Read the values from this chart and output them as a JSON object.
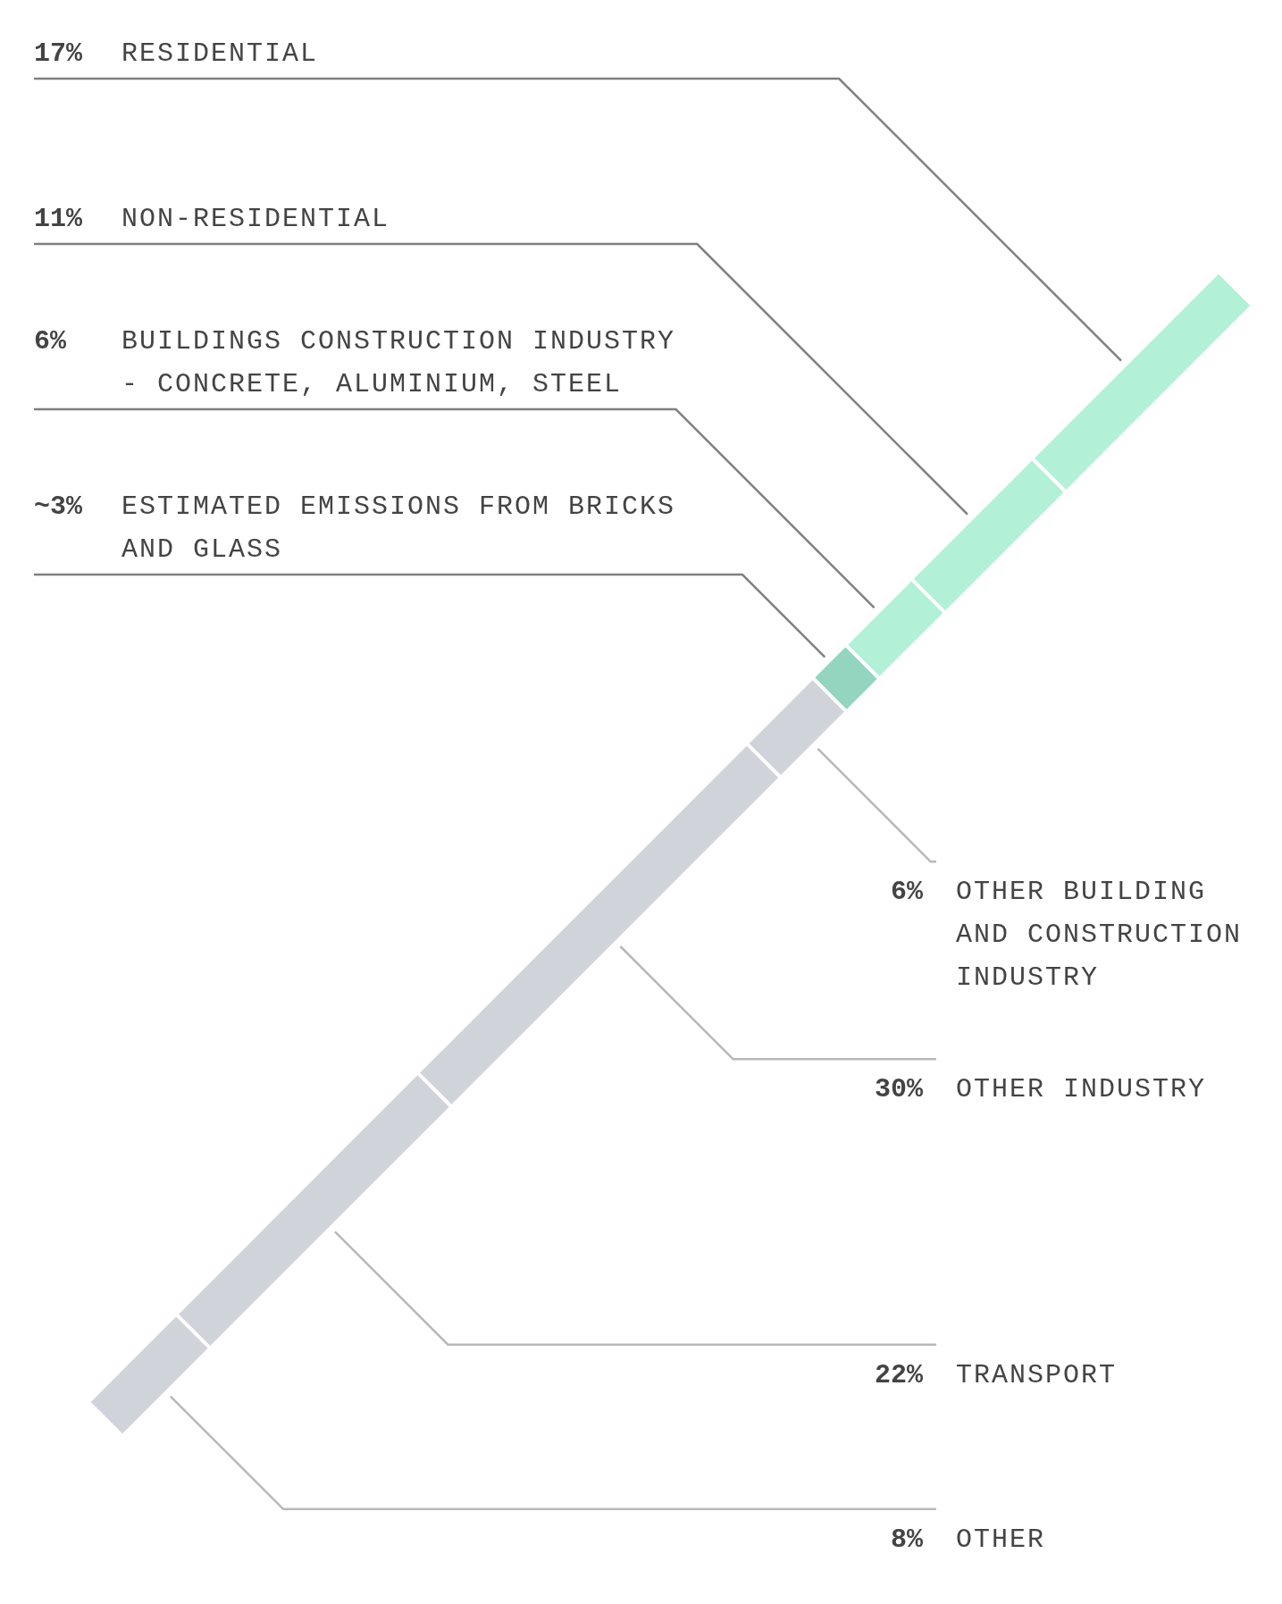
{
  "chart_data": {
    "type": "other",
    "categories": [
      "OTHER",
      "TRANSPORT",
      "OTHER INDUSTRY",
      "OTHER BUILDING AND CONSTRUCTION INDUSTRY",
      "ESTIMATED EMISSIONS FROM BRICKS AND GLASS",
      "BUILDINGS CONSTRUCTION INDUSTRY - CONCRETE, ALUMINIUM, STEEL",
      "NON-RESIDENTIAL",
      "RESIDENTIAL"
    ],
    "values": [
      8,
      22,
      30,
      6,
      3,
      6,
      11,
      17
    ],
    "value_labels": [
      "8%",
      "22%",
      "30%",
      "6%",
      "~3%",
      "6%",
      "11%",
      "17%"
    ],
    "colors": [
      "#d0d3da",
      "#d0d3da",
      "#d0d3da",
      "#d0d3da",
      "#93d5be",
      "#b3f0d8",
      "#b3f0d8",
      "#b3f0d8"
    ]
  }
}
